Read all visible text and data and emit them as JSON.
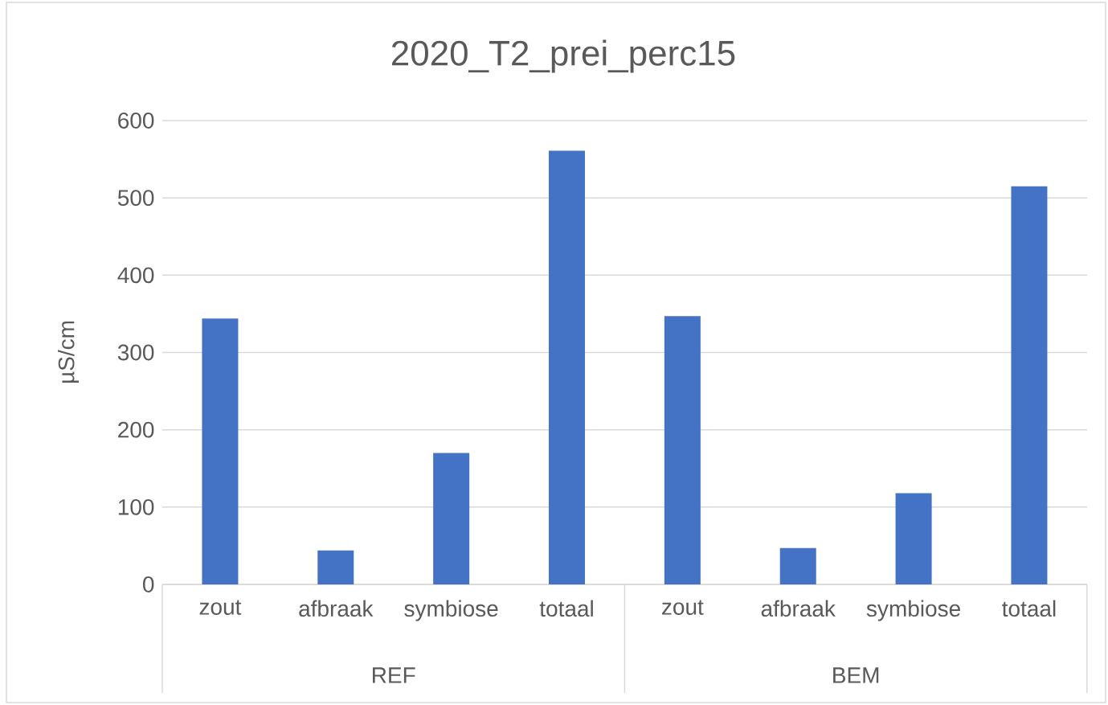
{
  "chart_data": {
    "type": "bar",
    "title": "2020_T2_prei_perc15",
    "ylabel": "µS/cm",
    "categories": [
      "zout",
      "afbraak",
      "symbiose",
      "totaal",
      "zout",
      "afbraak",
      "symbiose",
      "totaal"
    ],
    "values": [
      344,
      44,
      170,
      561,
      347,
      47,
      118,
      515
    ],
    "color": "#4472c4",
    "ylim": [
      0,
      600
    ],
    "yticks": [
      0,
      100,
      200,
      300,
      400,
      500,
      600
    ],
    "grid": "y",
    "annotations": [
      "REF",
      "BEM"
    ]
  }
}
